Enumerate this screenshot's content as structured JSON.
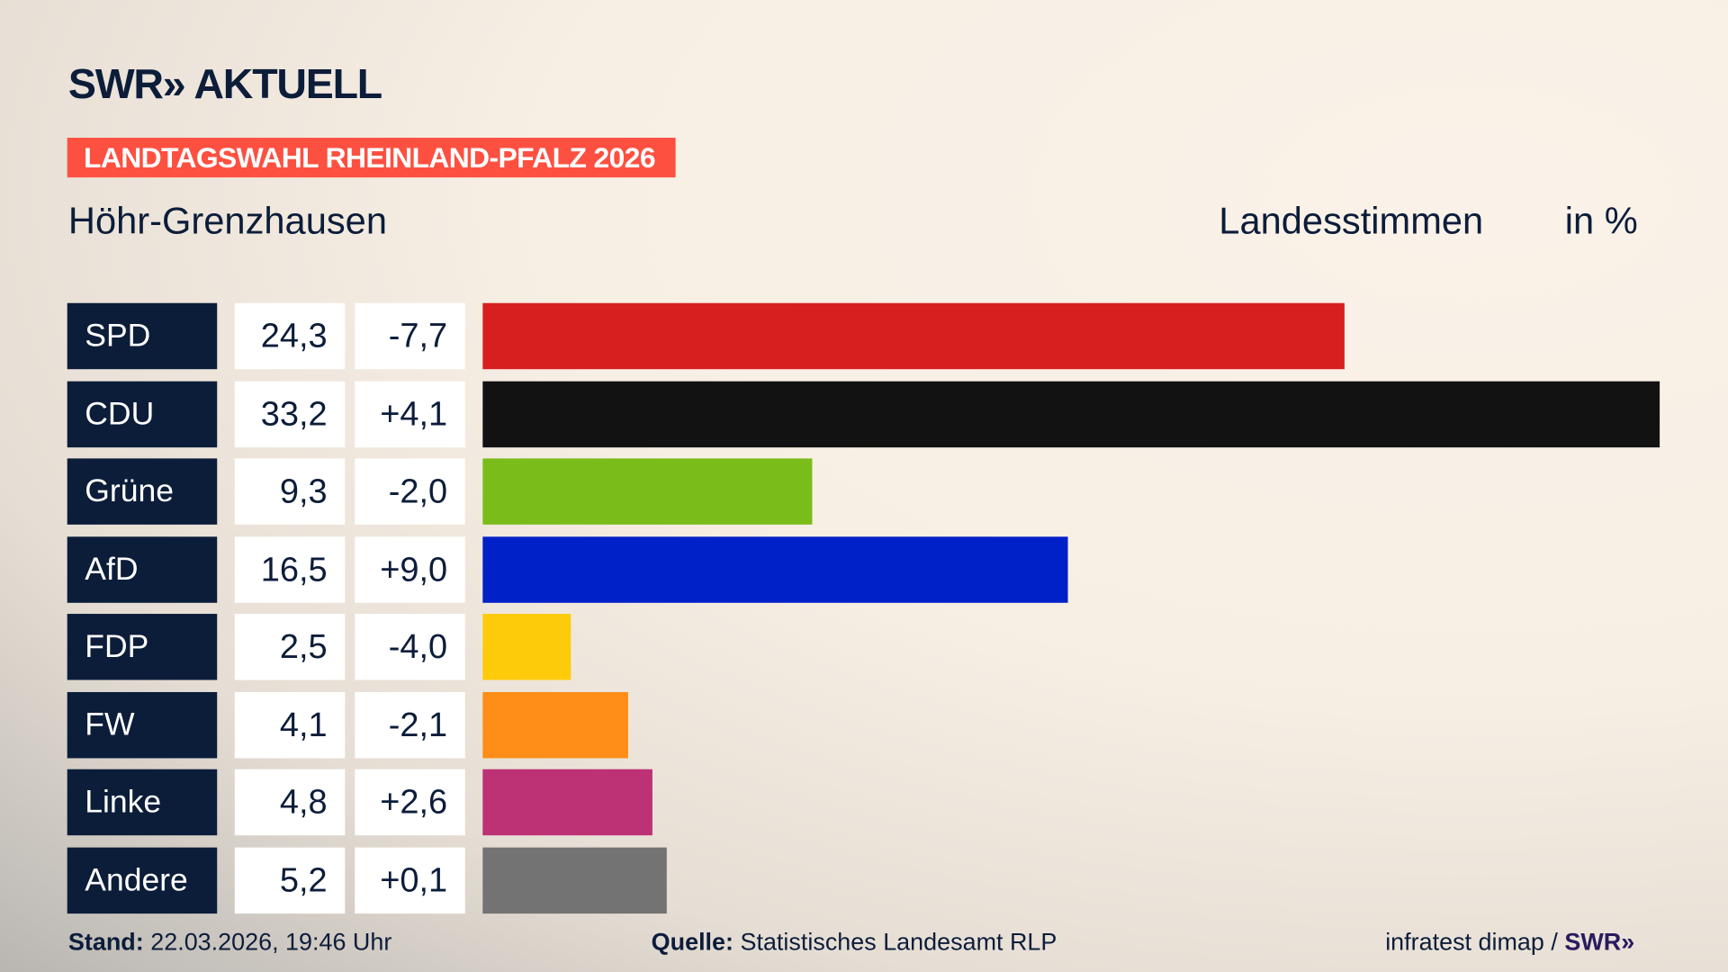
{
  "brand": {
    "logo": "SWR» AKTUELL"
  },
  "banner": "LANDTAGSWAHL RHEINLAND-PFALZ 2026",
  "region": "Höhr-Grenzhausen",
  "chart_data": {
    "type": "bar",
    "orientation": "horizontal",
    "title": "Landesstimmen",
    "unit": "in %",
    "categories": [
      "SPD",
      "CDU",
      "Grüne",
      "AfD",
      "FDP",
      "FW",
      "Linke",
      "Andere"
    ],
    "values": [
      24.3,
      33.2,
      9.3,
      16.5,
      2.5,
      4.1,
      4.8,
      5.2
    ],
    "value_labels": [
      "24,3",
      "33,2",
      "9,3",
      "16,5",
      "2,5",
      "4,1",
      "4,8",
      "5,2"
    ],
    "change_labels": [
      "-7,7",
      "+4,1",
      "-2,0",
      "+9,0",
      "-4,0",
      "-2,1",
      "+2,6",
      "+0,1"
    ],
    "changes": [
      -7.7,
      4.1,
      -2.0,
      9.0,
      -4.0,
      -2.1,
      2.6,
      0.1
    ],
    "colors": [
      "#d81f20",
      "#121212",
      "#7abd1b",
      "#0021c8",
      "#fecb0b",
      "#fe8e17",
      "#bc3275",
      "#737373"
    ],
    "grid": false
  },
  "footer": {
    "stand_label": "Stand:",
    "stand_value": "22.03.2026, 19:46 Uhr",
    "source_label": "Quelle:",
    "source_value": "Statistisches Landesamt RLP",
    "credit": "infratest dimap /",
    "credit_logo": "SWR»"
  }
}
